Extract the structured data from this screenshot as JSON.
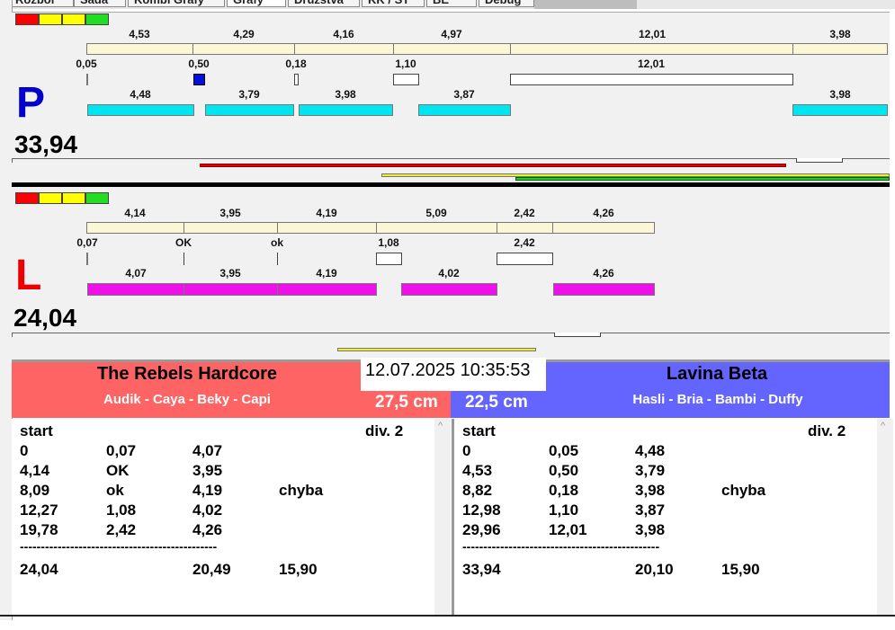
{
  "tabs": [
    "Rozbor",
    "Sada",
    "Kombi Grafy",
    "Grafy",
    "Družstva",
    "KK / ST",
    "BE",
    "Debug"
  ],
  "colors": {
    "red_team": "#ff6464",
    "blue_team": "#6464ff",
    "cyan": "#00e5ee",
    "magenta": "#ee10e8",
    "beige": "#fbf7d6"
  },
  "lanes": {
    "P": {
      "letter": "P",
      "score": "33,94",
      "top_labels": [
        "4,53",
        "4,29",
        "4,16",
        "4,97",
        "12,01",
        "3,98"
      ],
      "mid_labels": [
        "0,05",
        "0,50",
        "0,18",
        "1,10",
        "12,01"
      ],
      "bot_labels": [
        "4,48",
        "3,79",
        "3,98",
        "3,87",
        "3,98"
      ]
    },
    "L": {
      "letter": "L",
      "score": "24,04",
      "top_labels": [
        "4,14",
        "3,95",
        "4,19",
        "5,09",
        "2,42",
        "4,26"
      ],
      "mid_labels": [
        "0,07",
        "OK",
        "ok",
        "1,08",
        "2,42"
      ],
      "bot_labels": [
        "4,07",
        "3,95",
        "4,19",
        "4,02",
        "4,26"
      ]
    }
  },
  "datetime": "12.07.2025 10:35:53",
  "teams": {
    "left": {
      "name": "The Rebels Hardcore",
      "players": "Audik - Caya - Beky - Capi",
      "distance": "27,5 cm"
    },
    "right": {
      "name": "Lavina Beta",
      "players": "Hasli - Bria - Bambi - Duffy",
      "distance": "22,5 cm"
    }
  },
  "lists": {
    "left": {
      "start": "start",
      "div": "div.  2",
      "rows": [
        [
          "0",
          "0,07",
          "4,07",
          ""
        ],
        [
          "4,14",
          "OK",
          "3,95",
          ""
        ],
        [
          "8,09",
          "ok",
          "4,19",
          "chyba"
        ],
        [
          "12,27",
          "1,08",
          "4,02",
          ""
        ],
        [
          "19,78",
          "2,42",
          "4,26",
          ""
        ]
      ],
      "separator": "-----------------------------------------------",
      "totals": [
        "24,04",
        "",
        "20,49",
        "15,90"
      ]
    },
    "right": {
      "start": "start",
      "div": "div.  2",
      "rows": [
        [
          "0",
          "0,05",
          "4,48",
          ""
        ],
        [
          "4,53",
          "0,50",
          "3,79",
          ""
        ],
        [
          "8,82",
          "0,18",
          "3,98",
          "chyba"
        ],
        [
          "12,98",
          "1,10",
          "3,87",
          ""
        ],
        [
          "29,96",
          "12,01",
          "3,98",
          ""
        ]
      ],
      "separator": "-----------------------------------------------",
      "totals": [
        "33,94",
        "",
        "20,10",
        "15,90"
      ]
    }
  }
}
